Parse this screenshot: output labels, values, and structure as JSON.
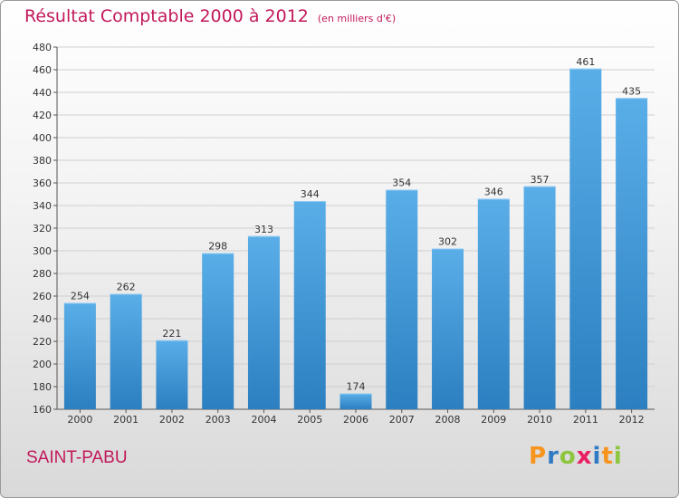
{
  "chart_data": {
    "type": "bar",
    "title": "Résultat Comptable 2000 à 2012",
    "subtitle": "(en milliers d'€)",
    "categories": [
      "2000",
      "2001",
      "2002",
      "2003",
      "2004",
      "2005",
      "2006",
      "2007",
      "2008",
      "2009",
      "2010",
      "2011",
      "2012"
    ],
    "values": [
      254,
      262,
      221,
      298,
      313,
      344,
      174,
      354,
      302,
      346,
      357,
      461,
      435
    ],
    "xlabel": "",
    "ylabel": "",
    "ylim": [
      160,
      480
    ],
    "ytick_step": 20,
    "grid": true,
    "bar_color_top": "#5aaee8",
    "bar_color_bottom": "#2c7fc0"
  },
  "footer": {
    "commune": "SAINT-PABU",
    "logo_letters": [
      "P",
      "r",
      "o",
      "x",
      "i",
      "t",
      "i"
    ],
    "logo_colors": [
      "#f7941d",
      "#2e7bc4",
      "#8dc63f",
      "#e91e63",
      "#2e7bc4",
      "#f7941d",
      "#8dc63f"
    ]
  }
}
